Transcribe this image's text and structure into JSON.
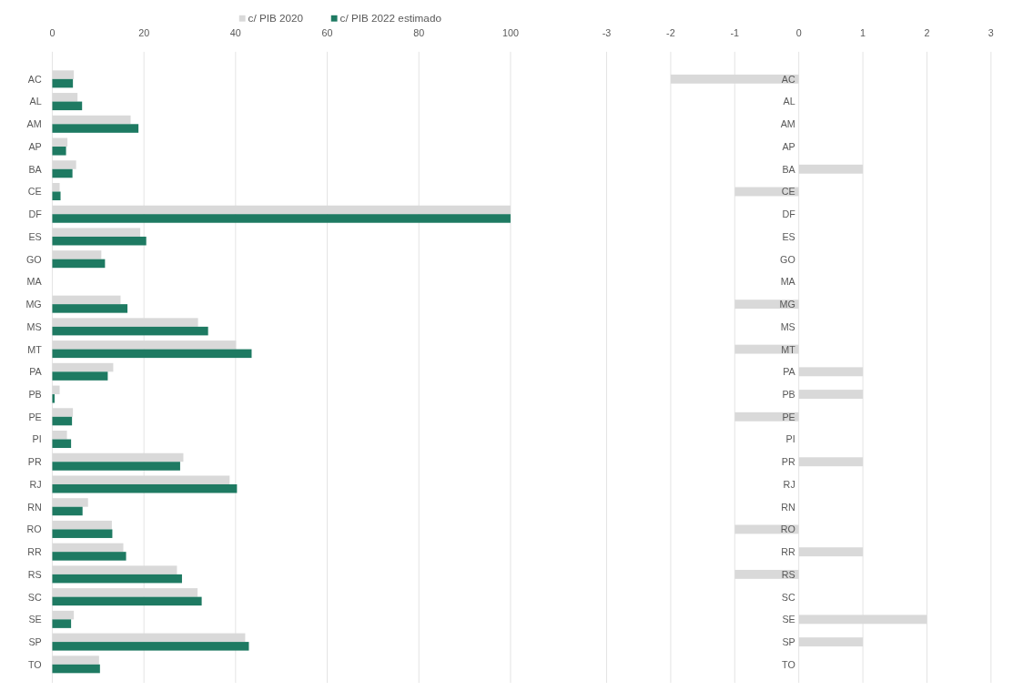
{
  "chart_data": [
    {
      "type": "bar",
      "orientation": "horizontal",
      "categories": [
        "AC",
        "AL",
        "AM",
        "AP",
        "BA",
        "CE",
        "DF",
        "ES",
        "GO",
        "MA",
        "MG",
        "MS",
        "MT",
        "PA",
        "PB",
        "PE",
        "PI",
        "PR",
        "RJ",
        "RN",
        "RO",
        "RR",
        "RS",
        "SC",
        "SE",
        "SP",
        "TO"
      ],
      "series": [
        {
          "name": "c/ PIB 2020",
          "color": "#d9d9d9",
          "values": [
            4.7,
            5.5,
            17.1,
            3.3,
            5.2,
            1.6,
            100,
            19.2,
            10.7,
            null,
            14.9,
            31.8,
            40.1,
            13.3,
            1.6,
            4.5,
            3.2,
            28.6,
            38.7,
            7.8,
            13.0,
            15.5,
            27.2,
            31.7,
            4.7,
            42.1,
            10.2
          ]
        },
        {
          "name": "c/ PIB 2022 estimado",
          "color": "#1e7a62",
          "values": [
            4.5,
            6.5,
            18.8,
            3.0,
            4.4,
            1.8,
            100,
            20.5,
            11.5,
            null,
            16.4,
            34.0,
            43.5,
            12.1,
            0.5,
            4.3,
            4.1,
            27.9,
            40.3,
            6.6,
            13.1,
            16.1,
            28.3,
            32.6,
            4.1,
            42.9,
            10.4
          ]
        }
      ],
      "xlim": [
        0,
        100
      ],
      "xticks": [
        0,
        20,
        40,
        60,
        80,
        100
      ],
      "grid": "x",
      "legend": "top"
    },
    {
      "type": "bar",
      "orientation": "horizontal",
      "categories": [
        "AC",
        "AL",
        "AM",
        "AP",
        "BA",
        "CE",
        "DF",
        "ES",
        "GO",
        "MA",
        "MG",
        "MS",
        "MT",
        "PA",
        "PB",
        "PE",
        "PI",
        "PR",
        "RJ",
        "RN",
        "RO",
        "RR",
        "RS",
        "SC",
        "SE",
        "SP",
        "TO"
      ],
      "series": [
        {
          "color": "#d9d9d9",
          "values": [
            -2,
            0,
            0,
            0,
            1,
            -1,
            0,
            0,
            0,
            0,
            -1,
            0,
            -1,
            1,
            1,
            -1,
            0,
            1,
            0,
            0,
            -1,
            1,
            -1,
            0,
            2,
            1,
            0
          ]
        }
      ],
      "xlim": [
        -3,
        3
      ],
      "xticks": [
        -3,
        -2,
        -1,
        0,
        1,
        2,
        3
      ],
      "grid": "x"
    }
  ]
}
